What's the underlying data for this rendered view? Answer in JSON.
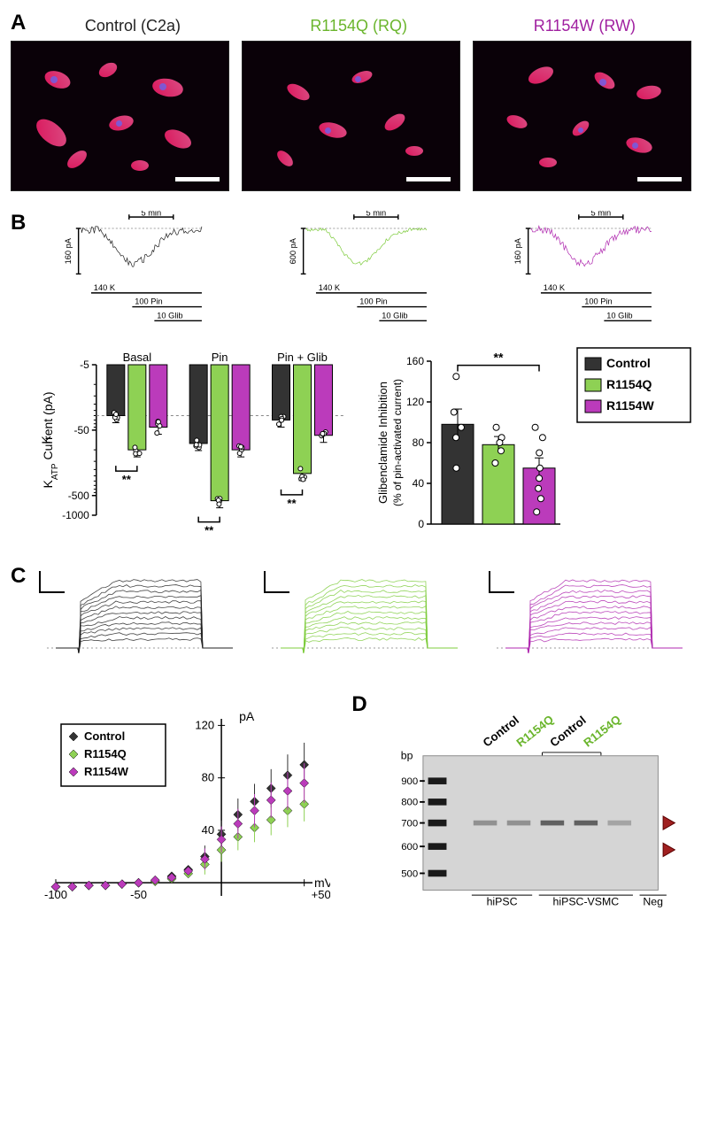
{
  "colors": {
    "control": "#222222",
    "rq": "#7fcc3e",
    "rw": "#b02bb0",
    "control_fill": "#333333",
    "rq_fill": "#8ed154",
    "rw_fill": "#bb3bbb"
  },
  "panelA": {
    "titles": {
      "control": "Control (C2a)",
      "rq": "R1154Q (RQ)",
      "rw": "R1154W (RW)"
    }
  },
  "panelB": {
    "timebar": "5 min",
    "yscale": {
      "control": "160 pA",
      "rq": "600 pA",
      "rw": "160 pA"
    },
    "cond": {
      "k": "140 K",
      "pin": "100 Pin",
      "glib": "10 Glib"
    },
    "left_chart": {
      "ylabel": "KATP Current (pA)",
      "groups": [
        "Basal",
        "Pin",
        "Pin + Glib"
      ],
      "yticks": [
        "-5",
        "-50",
        "-500",
        "-1000"
      ],
      "bars": {
        "Basal": {
          "control": 30,
          "rq": 100,
          "rw": 45
        },
        "Pin": {
          "control": 80,
          "rq": 600,
          "rw": 100
        },
        "Pin + Glib": {
          "control": 35,
          "rq": 230,
          "rw": 60
        }
      },
      "sig": "**"
    },
    "right_chart": {
      "ylabel_l1": "Glibenclamide Inhibition",
      "ylabel_l2": "(% of pin-activated current)",
      "yticks": [
        0,
        40,
        80,
        120,
        160
      ],
      "bars": {
        "control": 98,
        "rq": 78,
        "rw": 55
      },
      "errs": {
        "control": 15,
        "rq": 8,
        "rw": 10
      },
      "points": {
        "control": [
          145,
          110,
          95,
          85,
          55
        ],
        "rq": [
          95,
          85,
          80,
          72,
          60
        ],
        "rw": [
          95,
          85,
          70,
          55,
          45,
          35,
          25,
          12
        ]
      },
      "sig": "**",
      "legend": [
        "Control",
        "R1154Q",
        "R1154W"
      ]
    }
  },
  "panelC": {
    "chart": {
      "legend": [
        "Control",
        "R1154Q",
        "R1154W"
      ],
      "x_label": "mV",
      "y_label": "pA",
      "yticks": [
        40,
        80,
        120
      ],
      "xticks": [
        -100,
        -50,
        50
      ],
      "x_plus": "+50",
      "series": {
        "control": [
          [
            -100,
            -3
          ],
          [
            -90,
            -3
          ],
          [
            -80,
            -2
          ],
          [
            -70,
            -2
          ],
          [
            -60,
            -1
          ],
          [
            -50,
            0
          ],
          [
            -40,
            2
          ],
          [
            -30,
            5
          ],
          [
            -20,
            10
          ],
          [
            -10,
            20
          ],
          [
            0,
            37
          ],
          [
            10,
            52
          ],
          [
            20,
            62
          ],
          [
            30,
            72
          ],
          [
            40,
            82
          ],
          [
            50,
            90
          ]
        ],
        "rq": [
          [
            -100,
            -3
          ],
          [
            -90,
            -3
          ],
          [
            -80,
            -2
          ],
          [
            -70,
            -2
          ],
          [
            -60,
            -1
          ],
          [
            -50,
            0
          ],
          [
            -40,
            1
          ],
          [
            -30,
            3
          ],
          [
            -20,
            7
          ],
          [
            -10,
            14
          ],
          [
            0,
            25
          ],
          [
            10,
            35
          ],
          [
            20,
            42
          ],
          [
            30,
            48
          ],
          [
            40,
            55
          ],
          [
            50,
            60
          ]
        ],
        "rw": [
          [
            -100,
            -3
          ],
          [
            -90,
            -3
          ],
          [
            -80,
            -2
          ],
          [
            -70,
            -2
          ],
          [
            -60,
            -1
          ],
          [
            -50,
            0
          ],
          [
            -40,
            2
          ],
          [
            -30,
            4
          ],
          [
            -20,
            9
          ],
          [
            -10,
            18
          ],
          [
            0,
            33
          ],
          [
            10,
            45
          ],
          [
            20,
            55
          ],
          [
            30,
            63
          ],
          [
            40,
            70
          ],
          [
            50,
            76
          ]
        ]
      }
    }
  },
  "panelD": {
    "lane_labels": [
      "Control",
      "R1154Q",
      "Control",
      "R1154Q"
    ],
    "group_labels": {
      "hipsc": "hiPSC",
      "vsmc": "hiPSC-VSMC",
      "neg": "Neg"
    },
    "bp": "bp",
    "ladder": [
      "900",
      "800",
      "700",
      "600",
      "500"
    ]
  }
}
